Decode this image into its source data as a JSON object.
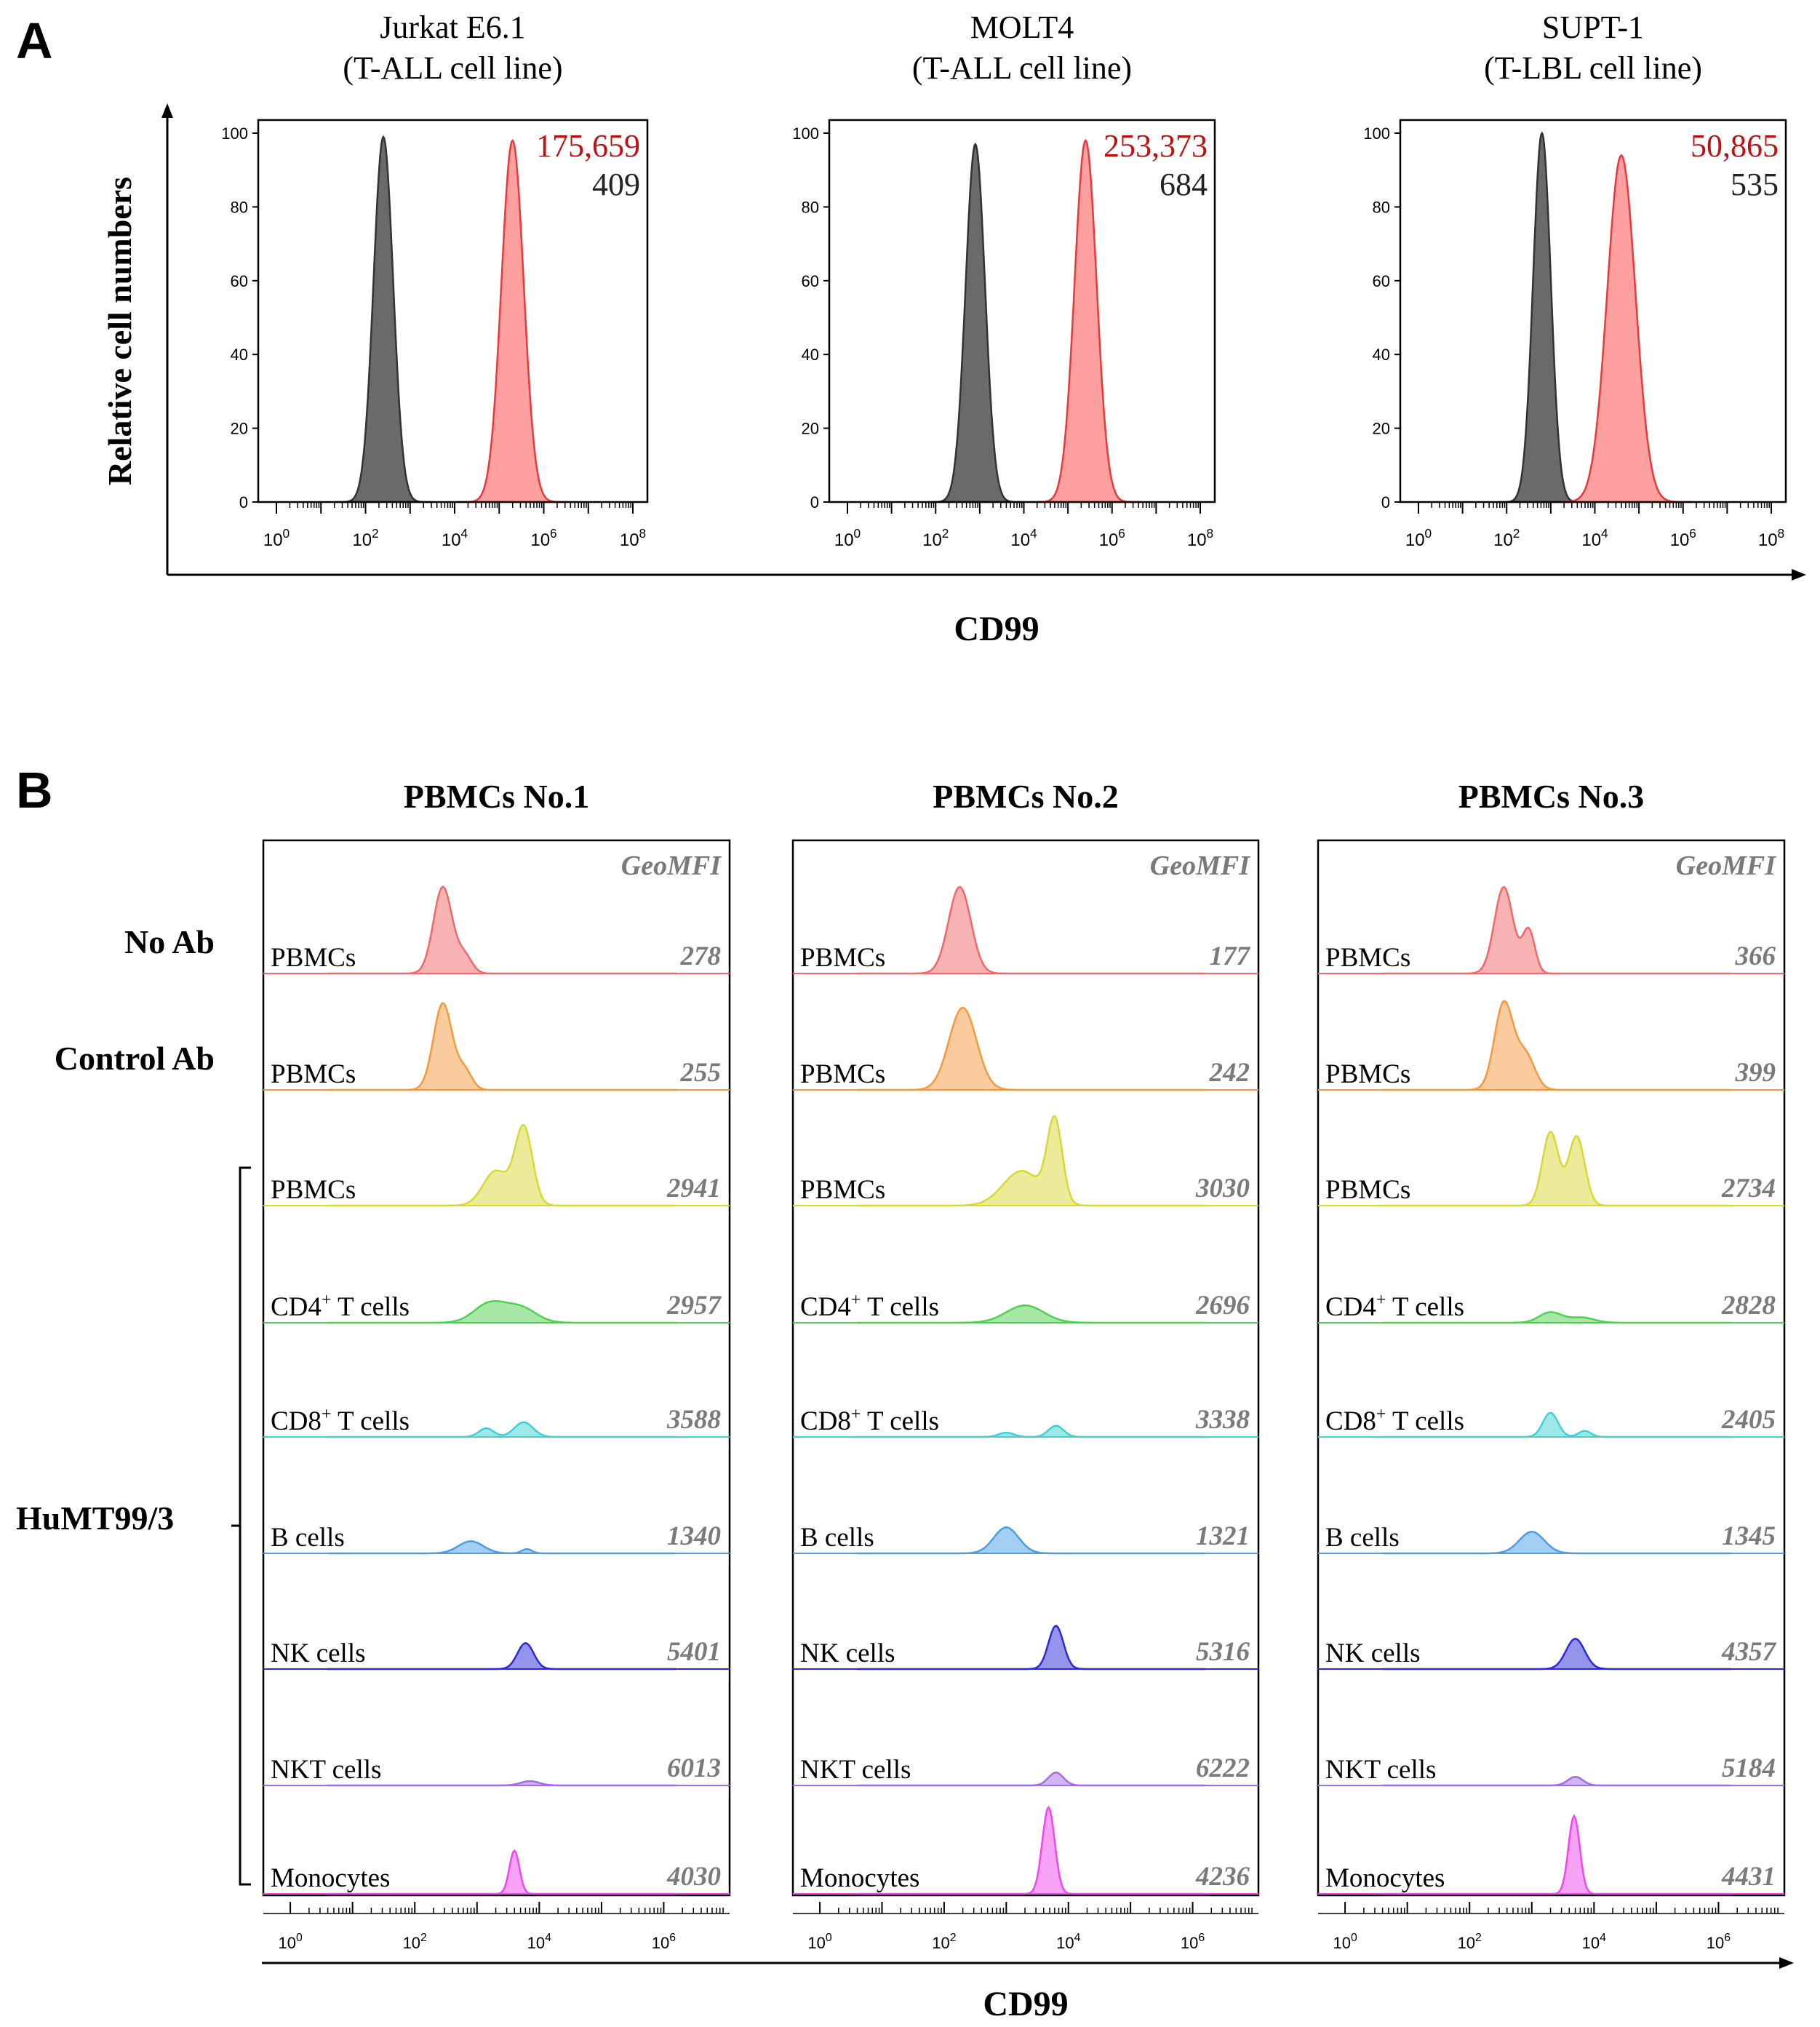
{
  "panel_a": {
    "letter": "A",
    "y_axis_label": "Relative cell numbers",
    "x_axis_label": "CD99",
    "y_ticks": [
      "0",
      "20",
      "40",
      "60",
      "80",
      "100"
    ],
    "x_ticks": [
      "0",
      "2",
      "4",
      "6",
      "8"
    ],
    "x_tick_base": "10"
  },
  "panel_b": {
    "letter": "B",
    "x_axis_label": "CD99",
    "x_ticks": [
      "0",
      "2",
      "4",
      "6"
    ],
    "x_tick_base": "10",
    "geomfi_label": "GeoMFI",
    "row_labels": {
      "no_ab": "No Ab",
      "control_ab": "Control Ab",
      "humt": "HuMT99/3"
    }
  },
  "chart_data": [
    {
      "type": "histogram",
      "panel": "A",
      "title": "Jurkat E6.1",
      "subtitle": "(T-ALL cell line)",
      "xscale": "log10",
      "xlim": [
        0,
        8
      ],
      "ylim": [
        0,
        100
      ],
      "xlabel": "CD99",
      "ylabel": "Relative cell numbers",
      "series": [
        {
          "name": "control",
          "color": "#5f5f5f",
          "peak_log10": 2.4,
          "width": 0.22,
          "height": 99,
          "value_label": "409"
        },
        {
          "name": "CD99",
          "color": "#ff7b7b",
          "peak_log10": 5.3,
          "width": 0.25,
          "height": 98,
          "value_label": "175,659"
        }
      ]
    },
    {
      "type": "histogram",
      "panel": "A",
      "title": "MOLT4",
      "subtitle": "(T-ALL cell line)",
      "xscale": "log10",
      "xlim": [
        0,
        8
      ],
      "ylim": [
        0,
        100
      ],
      "xlabel": "CD99",
      "ylabel": "Relative cell numbers",
      "series": [
        {
          "name": "control",
          "color": "#5f5f5f",
          "peak_log10": 2.9,
          "width": 0.22,
          "height": 97,
          "value_label": "684"
        },
        {
          "name": "CD99",
          "color": "#ff7b7b",
          "peak_log10": 5.4,
          "width": 0.25,
          "height": 98,
          "value_label": "253,373"
        }
      ]
    },
    {
      "type": "histogram",
      "panel": "A",
      "title": "SUPT-1",
      "subtitle": "(T-LBL cell line)",
      "xscale": "log10",
      "xlim": [
        0,
        8
      ],
      "ylim": [
        0,
        100
      ],
      "xlabel": "CD99",
      "ylabel": "Relative cell numbers",
      "series": [
        {
          "name": "control",
          "color": "#5f5f5f",
          "peak_log10": 2.8,
          "width": 0.2,
          "height": 100,
          "value_label": "535"
        },
        {
          "name": "CD99",
          "color": "#ff7b7b",
          "peak_log10": 4.6,
          "width": 0.32,
          "height": 94,
          "value_label": "50,865"
        }
      ]
    },
    {
      "type": "histogram_stack",
      "panel": "B",
      "title": "PBMCs No.1",
      "xscale": "log10",
      "xlim": [
        -0.2,
        7
      ],
      "xlabel": "CD99",
      "rows": [
        {
          "label": "PBMCs",
          "label_sup": "",
          "label_rest": "",
          "color": "#f06868",
          "geomfi": "278",
          "peaks": [
            [
              2.45,
              0.15,
              1.0
            ],
            [
              2.8,
              0.12,
              0.2
            ]
          ]
        },
        {
          "label": "PBMCs",
          "label_sup": "",
          "label_rest": "",
          "color": "#f59a3c",
          "geomfi": "255",
          "peaks": [
            [
              2.45,
              0.15,
              1.0
            ],
            [
              2.8,
              0.12,
              0.22
            ]
          ]
        },
        {
          "label": "PBMCs",
          "label_sup": "",
          "label_rest": "",
          "color": "#d8d835",
          "geomfi": "2941",
          "peaks": [
            [
              3.3,
              0.2,
              0.4
            ],
            [
              3.75,
              0.14,
              0.9
            ]
          ]
        },
        {
          "label": "CD4",
          "label_sup": "+",
          "label_rest": " T cells",
          "color": "#4fd14f",
          "geomfi": "2957",
          "peaks": [
            [
              3.2,
              0.25,
              0.22
            ],
            [
              3.7,
              0.25,
              0.17
            ]
          ]
        },
        {
          "label": "CD8",
          "label_sup": "+",
          "label_rest": " T cells",
          "color": "#3fd2d2",
          "geomfi": "3588",
          "peaks": [
            [
              3.15,
              0.12,
              0.1
            ],
            [
              3.75,
              0.15,
              0.17
            ]
          ]
        },
        {
          "label": "B cells",
          "label_sup": "",
          "label_rest": "",
          "color": "#4a9ee8",
          "geomfi": "1340",
          "peaks": [
            [
              2.9,
              0.2,
              0.14
            ],
            [
              3.8,
              0.08,
              0.05
            ]
          ]
        },
        {
          "label": "NK cells",
          "label_sup": "",
          "label_rest": "",
          "color": "#2a2ad8",
          "geomfi": "5401",
          "peaks": [
            [
              3.78,
              0.13,
              0.3
            ]
          ]
        },
        {
          "label": "NKT cells",
          "label_sup": "",
          "label_rest": "",
          "color": "#a46bea",
          "geomfi": "6013",
          "peaks": [
            [
              3.85,
              0.15,
              0.05
            ]
          ]
        },
        {
          "label": "Monocytes",
          "label_sup": "",
          "label_rest": "",
          "color": "#ee48ee",
          "geomfi": "4030",
          "peaks": [
            [
              3.6,
              0.08,
              0.5
            ]
          ]
        }
      ]
    },
    {
      "type": "histogram_stack",
      "panel": "B",
      "title": "PBMCs No.2",
      "xscale": "log10",
      "xlim": [
        -0.2,
        7
      ],
      "xlabel": "CD99",
      "rows": [
        {
          "label": "PBMCs",
          "label_sup": "",
          "label_rest": "",
          "color": "#f06868",
          "geomfi": "177",
          "peaks": [
            [
              2.25,
              0.18,
              1.0
            ]
          ]
        },
        {
          "label": "PBMCs",
          "label_sup": "",
          "label_rest": "",
          "color": "#f59a3c",
          "geomfi": "242",
          "peaks": [
            [
              2.3,
              0.22,
              0.95
            ]
          ]
        },
        {
          "label": "PBMCs",
          "label_sup": "",
          "label_rest": "",
          "color": "#d8d835",
          "geomfi": "3030",
          "peaks": [
            [
              3.25,
              0.3,
              0.4
            ],
            [
              3.78,
              0.12,
              0.95
            ]
          ]
        },
        {
          "label": "CD4",
          "label_sup": "+",
          "label_rest": " T cells",
          "color": "#4fd14f",
          "geomfi": "2696",
          "peaks": [
            [
              3.3,
              0.3,
              0.2
            ]
          ]
        },
        {
          "label": "CD8",
          "label_sup": "+",
          "label_rest": " T cells",
          "color": "#3fd2d2",
          "geomfi": "3338",
          "peaks": [
            [
              3.0,
              0.12,
              0.05
            ],
            [
              3.8,
              0.12,
              0.13
            ]
          ]
        },
        {
          "label": "B cells",
          "label_sup": "",
          "label_rest": "",
          "color": "#4a9ee8",
          "geomfi": "1321",
          "peaks": [
            [
              3.0,
              0.2,
              0.3
            ]
          ]
        },
        {
          "label": "NK cells",
          "label_sup": "",
          "label_rest": "",
          "color": "#2a2ad8",
          "geomfi": "5316",
          "peaks": [
            [
              3.8,
              0.12,
              0.5
            ]
          ]
        },
        {
          "label": "NKT cells",
          "label_sup": "",
          "label_rest": "",
          "color": "#a46bea",
          "geomfi": "6222",
          "peaks": [
            [
              3.8,
              0.12,
              0.15
            ]
          ]
        },
        {
          "label": "Monocytes",
          "label_sup": "",
          "label_rest": "",
          "color": "#ee48ee",
          "geomfi": "4236",
          "peaks": [
            [
              3.68,
              0.1,
              1.0
            ]
          ]
        }
      ]
    },
    {
      "type": "histogram_stack",
      "panel": "B",
      "title": "PBMCs No.3",
      "xscale": "log10",
      "xlim": [
        -0.2,
        7
      ],
      "xlabel": "CD99",
      "rows": [
        {
          "label": "PBMCs",
          "label_sup": "",
          "label_rest": "",
          "color": "#f06868",
          "geomfi": "366",
          "peaks": [
            [
              2.55,
              0.15,
              1.0
            ],
            [
              2.95,
              0.1,
              0.5
            ]
          ]
        },
        {
          "label": "PBMCs",
          "label_sup": "",
          "label_rest": "",
          "color": "#f59a3c",
          "geomfi": "399",
          "peaks": [
            [
              2.55,
              0.15,
              1.0
            ],
            [
              2.9,
              0.15,
              0.4
            ]
          ]
        },
        {
          "label": "PBMCs",
          "label_sup": "",
          "label_rest": "",
          "color": "#d8d835",
          "geomfi": "2734",
          "peaks": [
            [
              3.3,
              0.13,
              0.85
            ],
            [
              3.72,
              0.13,
              0.8
            ]
          ]
        },
        {
          "label": "CD4",
          "label_sup": "+",
          "label_rest": " T cells",
          "color": "#4fd14f",
          "geomfi": "2828",
          "peaks": [
            [
              3.3,
              0.18,
              0.12
            ],
            [
              3.8,
              0.2,
              0.06
            ]
          ]
        },
        {
          "label": "CD8",
          "label_sup": "+",
          "label_rest": " T cells",
          "color": "#3fd2d2",
          "geomfi": "2405",
          "peaks": [
            [
              3.3,
              0.12,
              0.28
            ],
            [
              3.85,
              0.1,
              0.07
            ]
          ]
        },
        {
          "label": "B cells",
          "label_sup": "",
          "label_rest": "",
          "color": "#4a9ee8",
          "geomfi": "1345",
          "peaks": [
            [
              3.0,
              0.2,
              0.25
            ]
          ]
        },
        {
          "label": "NK cells",
          "label_sup": "",
          "label_rest": "",
          "color": "#2a2ad8",
          "geomfi": "4357",
          "peaks": [
            [
              3.7,
              0.15,
              0.35
            ]
          ]
        },
        {
          "label": "NKT cells",
          "label_sup": "",
          "label_rest": "",
          "color": "#a46bea",
          "geomfi": "5184",
          "peaks": [
            [
              3.7,
              0.12,
              0.1
            ]
          ]
        },
        {
          "label": "Monocytes",
          "label_sup": "",
          "label_rest": "",
          "color": "#ee48ee",
          "geomfi": "4431",
          "peaks": [
            [
              3.68,
              0.09,
              0.9
            ]
          ]
        }
      ]
    }
  ]
}
